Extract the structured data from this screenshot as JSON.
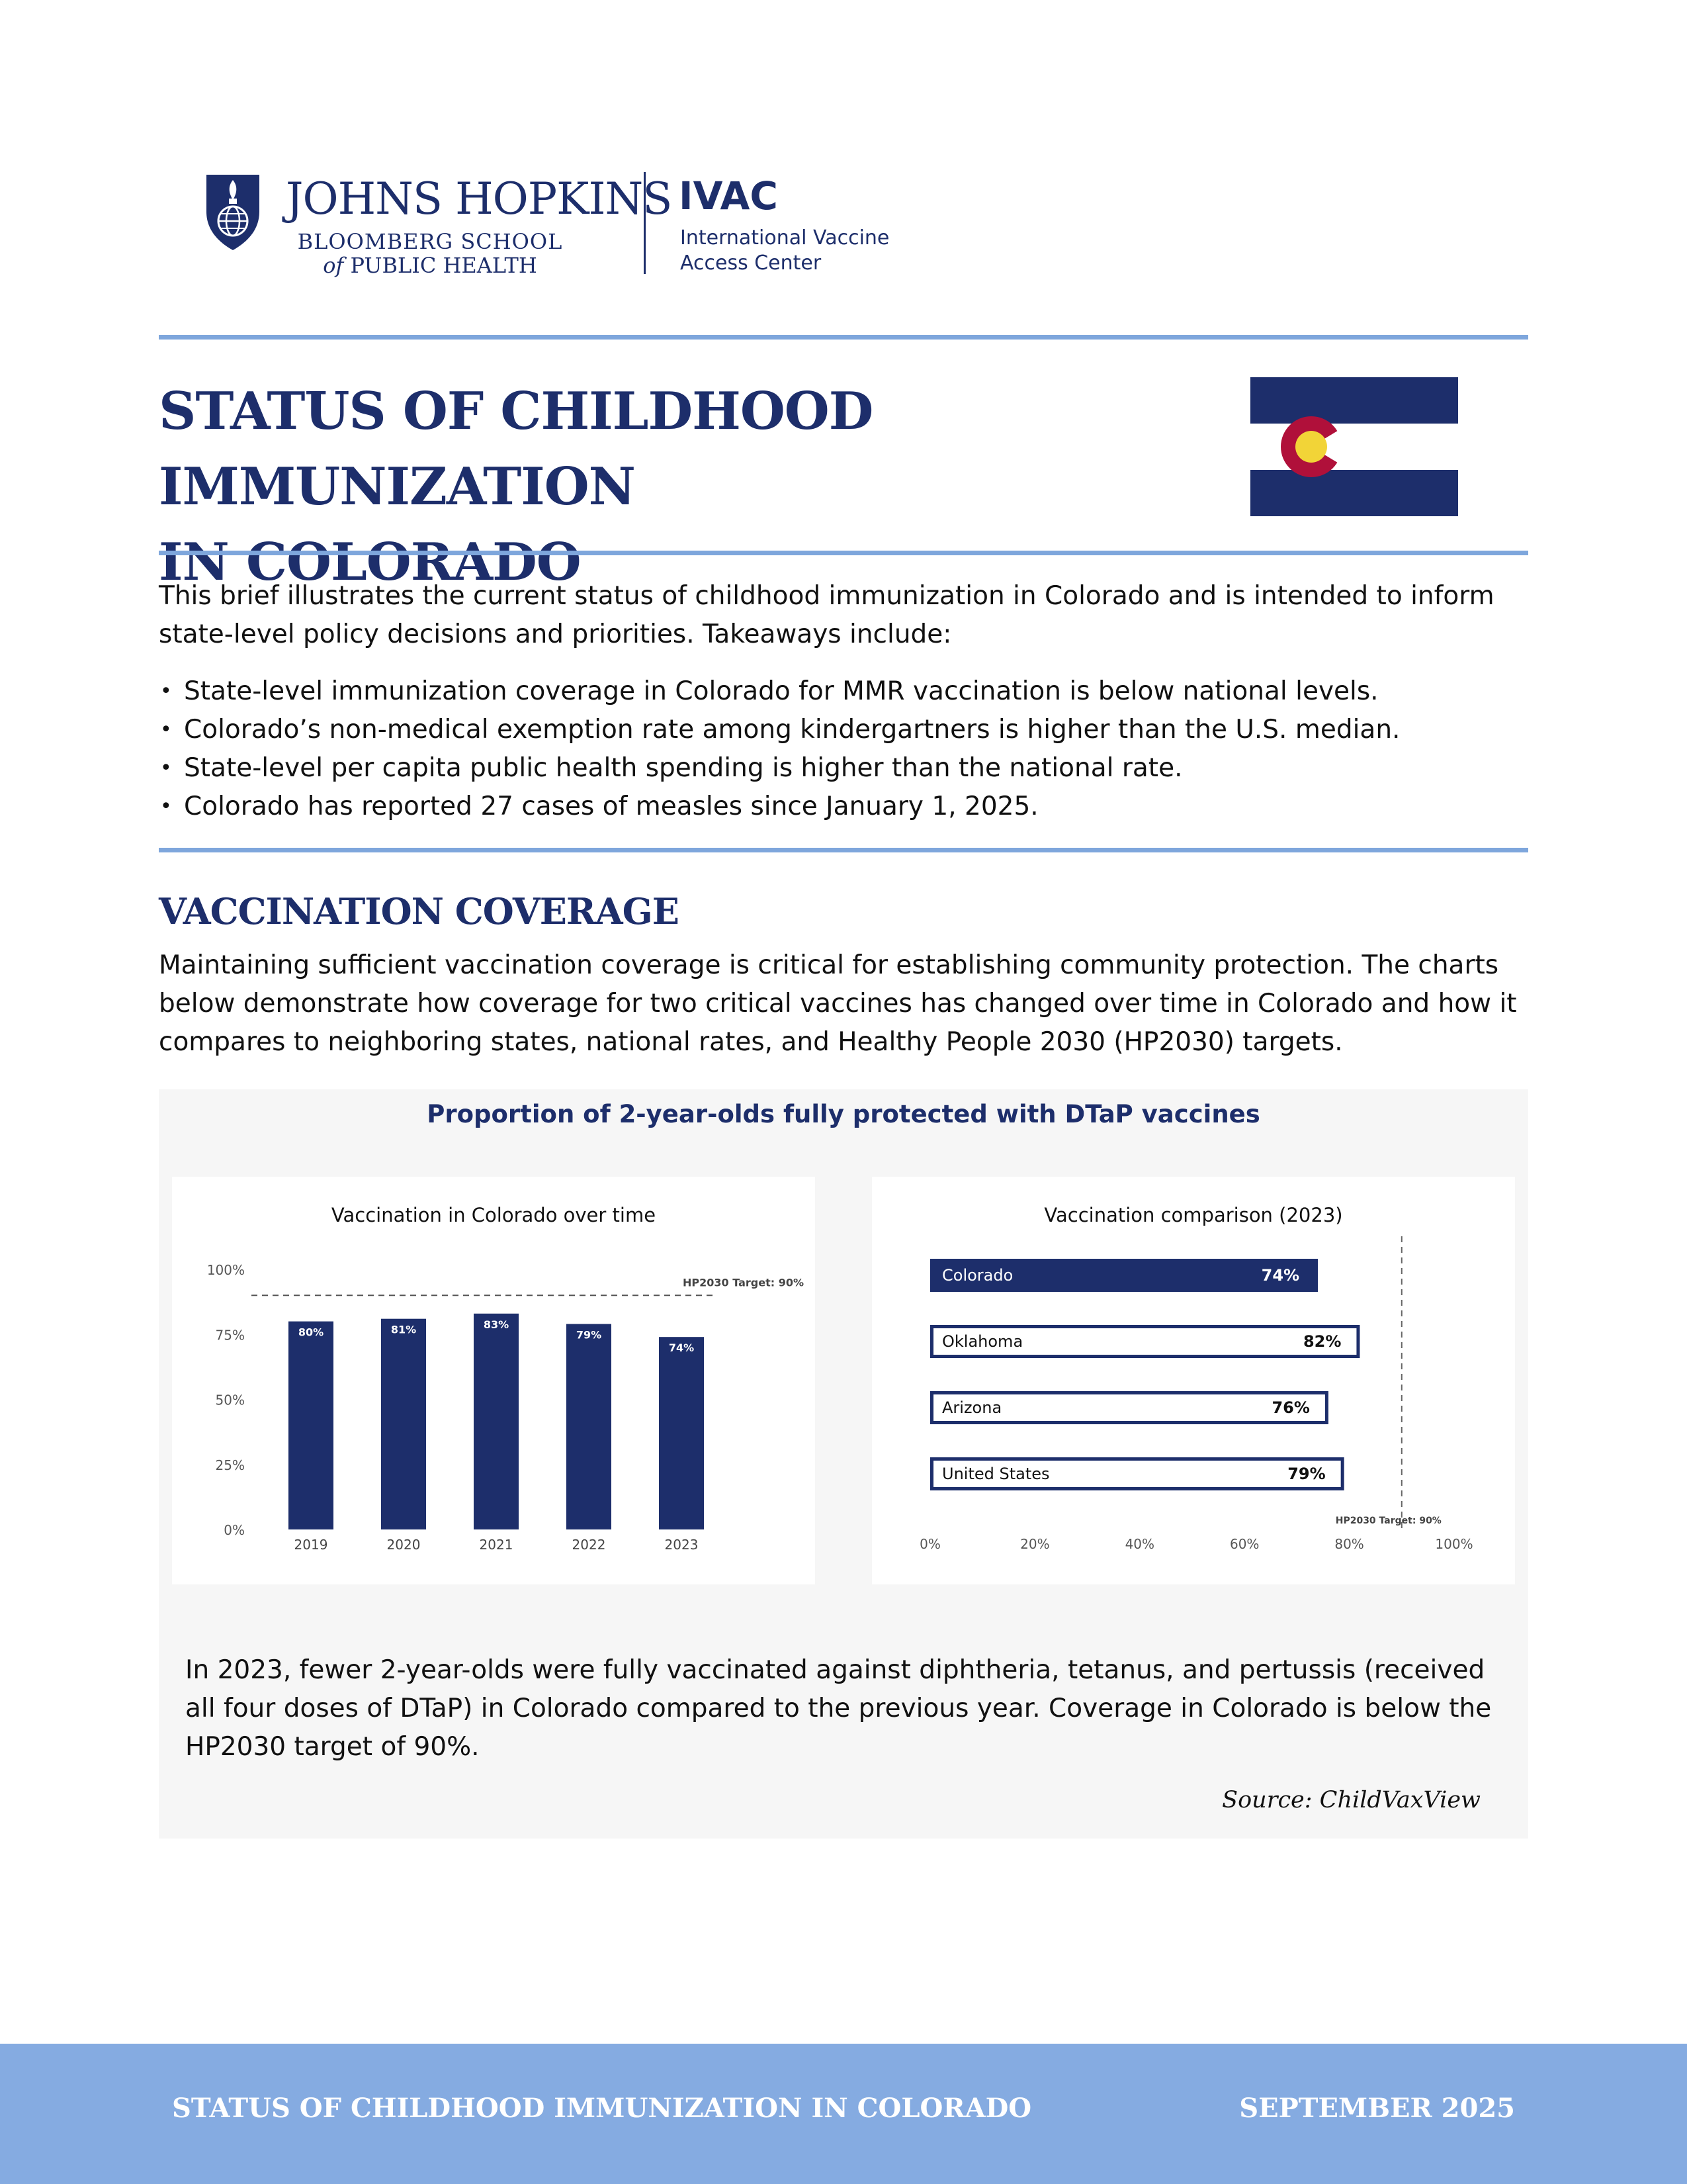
{
  "header": {
    "jh_name": "JOHNS HOPKINS",
    "jh_sub1": "BLOOMBERG SCHOOL",
    "jh_sub2_of": "of",
    "jh_sub2_rest": "PUBLIC HEALTH",
    "ivac": "IVAC",
    "ivac_line1": "International Vaccine",
    "ivac_line2": "Access Center"
  },
  "title": {
    "line1": "STATUS OF CHILDHOOD IMMUNIZATION",
    "line2": "IN COLORADO"
  },
  "intro": "This brief illustrates the current status of childhood immunization in Colorado and is intended to inform state-level policy decisions and priorities. Takeaways include:",
  "takeaways": [
    "State-level immunization coverage in Colorado for MMR vaccination is below national levels.",
    "Colorado’s non-medical exemption rate among kindergartners is higher than the U.S. median.",
    "State-level per capita public health spending is higher than the national rate.",
    "Colorado has reported 27 cases of measles since January 1, 2025."
  ],
  "section": {
    "title": "VACCINATION COVERAGE",
    "text": "Maintaining sufficient vaccination coverage is critical for establishing community protection. The charts below demonstrate how coverage for two critical vaccines has changed over time in Colorado and how it compares to neighboring states, national rates, and Healthy People 2030 (HP2030) targets."
  },
  "panel": {
    "title": "Proportion of 2-year-olds fully protected with DTaP vaccines",
    "caption": "In 2023, fewer 2-year-olds were fully vaccinated against diphtheria, tetanus, and pertussis (received all four doses of DTaP) in Colorado compared to the previous year. Coverage in Colorado is below the HP2030 target of 90%.",
    "source": "Source: ChildVaxView"
  },
  "chart_data": [
    {
      "type": "bar",
      "title": "Vaccination in Colorado over time",
      "categories": [
        "2019",
        "2020",
        "2021",
        "2022",
        "2023"
      ],
      "values": [
        80,
        81,
        83,
        79,
        74
      ],
      "value_labels": [
        "80%",
        "81%",
        "83%",
        "79%",
        "74%"
      ],
      "ylim": [
        0,
        100
      ],
      "yticks": [
        "0%",
        "25%",
        "50%",
        "75%",
        "100%"
      ],
      "ytick_values": [
        0,
        25,
        50,
        75,
        100
      ],
      "target": {
        "value": 90,
        "label": "HP2030 Target: 90%"
      },
      "bar_color": "#1d2e6b",
      "grid": false
    },
    {
      "type": "bar",
      "orientation": "horizontal",
      "title": "Vaccination comparison (2023)",
      "categories": [
        "Colorado",
        "Oklahoma",
        "Arizona",
        "United States"
      ],
      "values": [
        74,
        82,
        76,
        79
      ],
      "value_labels": [
        "74%",
        "82%",
        "76%",
        "79%"
      ],
      "xlim": [
        0,
        100
      ],
      "xticks": [
        "0%",
        "20%",
        "40%",
        "60%",
        "80%",
        "100%"
      ],
      "xtick_values": [
        0,
        20,
        40,
        60,
        80,
        100
      ],
      "target": {
        "value": 90,
        "label": "HP2030 Target: 90%"
      },
      "highlight": "Colorado",
      "bar_color": "#1d2e6b",
      "grid": false
    }
  ],
  "footer": {
    "left": "STATUS OF CHILDHOOD IMMUNIZATION IN COLORADO",
    "right": "SEPTEMBER 2025"
  },
  "colors": {
    "navy": "#1d2e6b",
    "rule_blue": "#7ea6dc",
    "footer_blue": "#85abe1",
    "flag_red": "#b0103a",
    "flag_gold": "#f2d437"
  },
  "icons": {
    "jh_logo": "university-shield-icon",
    "flag": "colorado-flag-icon"
  }
}
